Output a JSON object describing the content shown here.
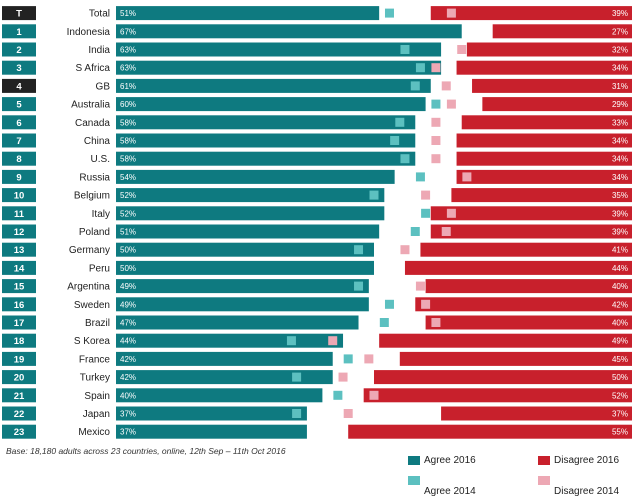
{
  "chart_data": {
    "type": "bar",
    "orientation": "horizontal-diverging",
    "xlim": [
      0,
      100
    ],
    "rows": [
      {
        "rank": "T",
        "country": "Total",
        "agree_2016": 51,
        "disagree_2016": 39,
        "agree_2014": 53,
        "disagree_2014": 35
      },
      {
        "rank": "1",
        "country": "Indonesia",
        "agree_2016": 67,
        "disagree_2016": 27
      },
      {
        "rank": "2",
        "country": "India",
        "agree_2016": 63,
        "disagree_2016": 32,
        "agree_2014": 56,
        "disagree_2014": 33
      },
      {
        "rank": "3",
        "country": "S Africa",
        "agree_2016": 63,
        "disagree_2016": 34,
        "agree_2014": 59,
        "disagree_2014": 38
      },
      {
        "rank": "4",
        "country": "GB",
        "agree_2016": 61,
        "disagree_2016": 31,
        "agree_2014": 58,
        "disagree_2014": 36
      },
      {
        "rank": "5",
        "country": "Australia",
        "agree_2016": 60,
        "disagree_2016": 29,
        "agree_2014": 62,
        "disagree_2014": 35
      },
      {
        "rank": "6",
        "country": "Canada",
        "agree_2016": 58,
        "disagree_2016": 33,
        "agree_2014": 55,
        "disagree_2014": 38
      },
      {
        "rank": "7",
        "country": "China",
        "agree_2016": 58,
        "disagree_2016": 34,
        "agree_2014": 54,
        "disagree_2014": 38
      },
      {
        "rank": "8",
        "country": "U.S.",
        "agree_2016": 58,
        "disagree_2016": 34,
        "agree_2014": 56,
        "disagree_2014": 38
      },
      {
        "rank": "9",
        "country": "Russia",
        "agree_2016": 54,
        "disagree_2016": 34,
        "agree_2014": 59,
        "disagree_2014": 32
      },
      {
        "rank": "10",
        "country": "Belgium",
        "agree_2016": 52,
        "disagree_2016": 35,
        "agree_2014": 50,
        "disagree_2014": 40
      },
      {
        "rank": "11",
        "country": "Italy",
        "agree_2016": 52,
        "disagree_2016": 39,
        "agree_2014": 60,
        "disagree_2014": 35
      },
      {
        "rank": "12",
        "country": "Poland",
        "agree_2016": 51,
        "disagree_2016": 39,
        "agree_2014": 58,
        "disagree_2014": 36
      },
      {
        "rank": "13",
        "country": "Germany",
        "agree_2016": 50,
        "disagree_2016": 41,
        "agree_2014": 47,
        "disagree_2014": 44
      },
      {
        "rank": "14",
        "country": "Peru",
        "agree_2016": 50,
        "disagree_2016": 44
      },
      {
        "rank": "15",
        "country": "Argentina",
        "agree_2016": 49,
        "disagree_2016": 40,
        "agree_2014": 47,
        "disagree_2014": 41
      },
      {
        "rank": "16",
        "country": "Sweden",
        "agree_2016": 49,
        "disagree_2016": 42,
        "agree_2014": 53,
        "disagree_2014": 40
      },
      {
        "rank": "17",
        "country": "Brazil",
        "agree_2016": 47,
        "disagree_2016": 40,
        "agree_2014": 52,
        "disagree_2014": 38
      },
      {
        "rank": "18",
        "country": "S Korea",
        "agree_2016": 44,
        "disagree_2016": 49,
        "agree_2014": 34,
        "disagree_2014": 58
      },
      {
        "rank": "19",
        "country": "France",
        "agree_2016": 42,
        "disagree_2016": 45,
        "agree_2014": 45,
        "disagree_2014": 51
      },
      {
        "rank": "20",
        "country": "Turkey",
        "agree_2016": 42,
        "disagree_2016": 50,
        "agree_2014": 35,
        "disagree_2014": 56
      },
      {
        "rank": "21",
        "country": "Spain",
        "agree_2016": 40,
        "disagree_2016": 52,
        "agree_2014": 43,
        "disagree_2014": 50
      },
      {
        "rank": "22",
        "country": "Japan",
        "agree_2016": 37,
        "disagree_2016": 37,
        "agree_2014": 35,
        "disagree_2014": 55
      },
      {
        "rank": "23",
        "country": "Mexico",
        "agree_2016": 37,
        "disagree_2016": 55
      }
    ],
    "legend": {
      "agree_2016": "Agree 2016",
      "disagree_2016": "Disagree 2016",
      "agree_2014": "Agree 2014",
      "disagree_2014": "Disagree 2014"
    },
    "legend_position": "bottom-right",
    "colors": {
      "agree_2016": "#0e7a80",
      "disagree_2016": "#c8202c",
      "agree_2014": "#5cc0c0",
      "disagree_2014": "#eda8b4",
      "rank_box": "#0e7a80",
      "rank_box_highlight": "#222222"
    },
    "base_note": "Base: 18,180 adults across 23 countries, online, 12th Sep – 11th Oct 2016"
  }
}
